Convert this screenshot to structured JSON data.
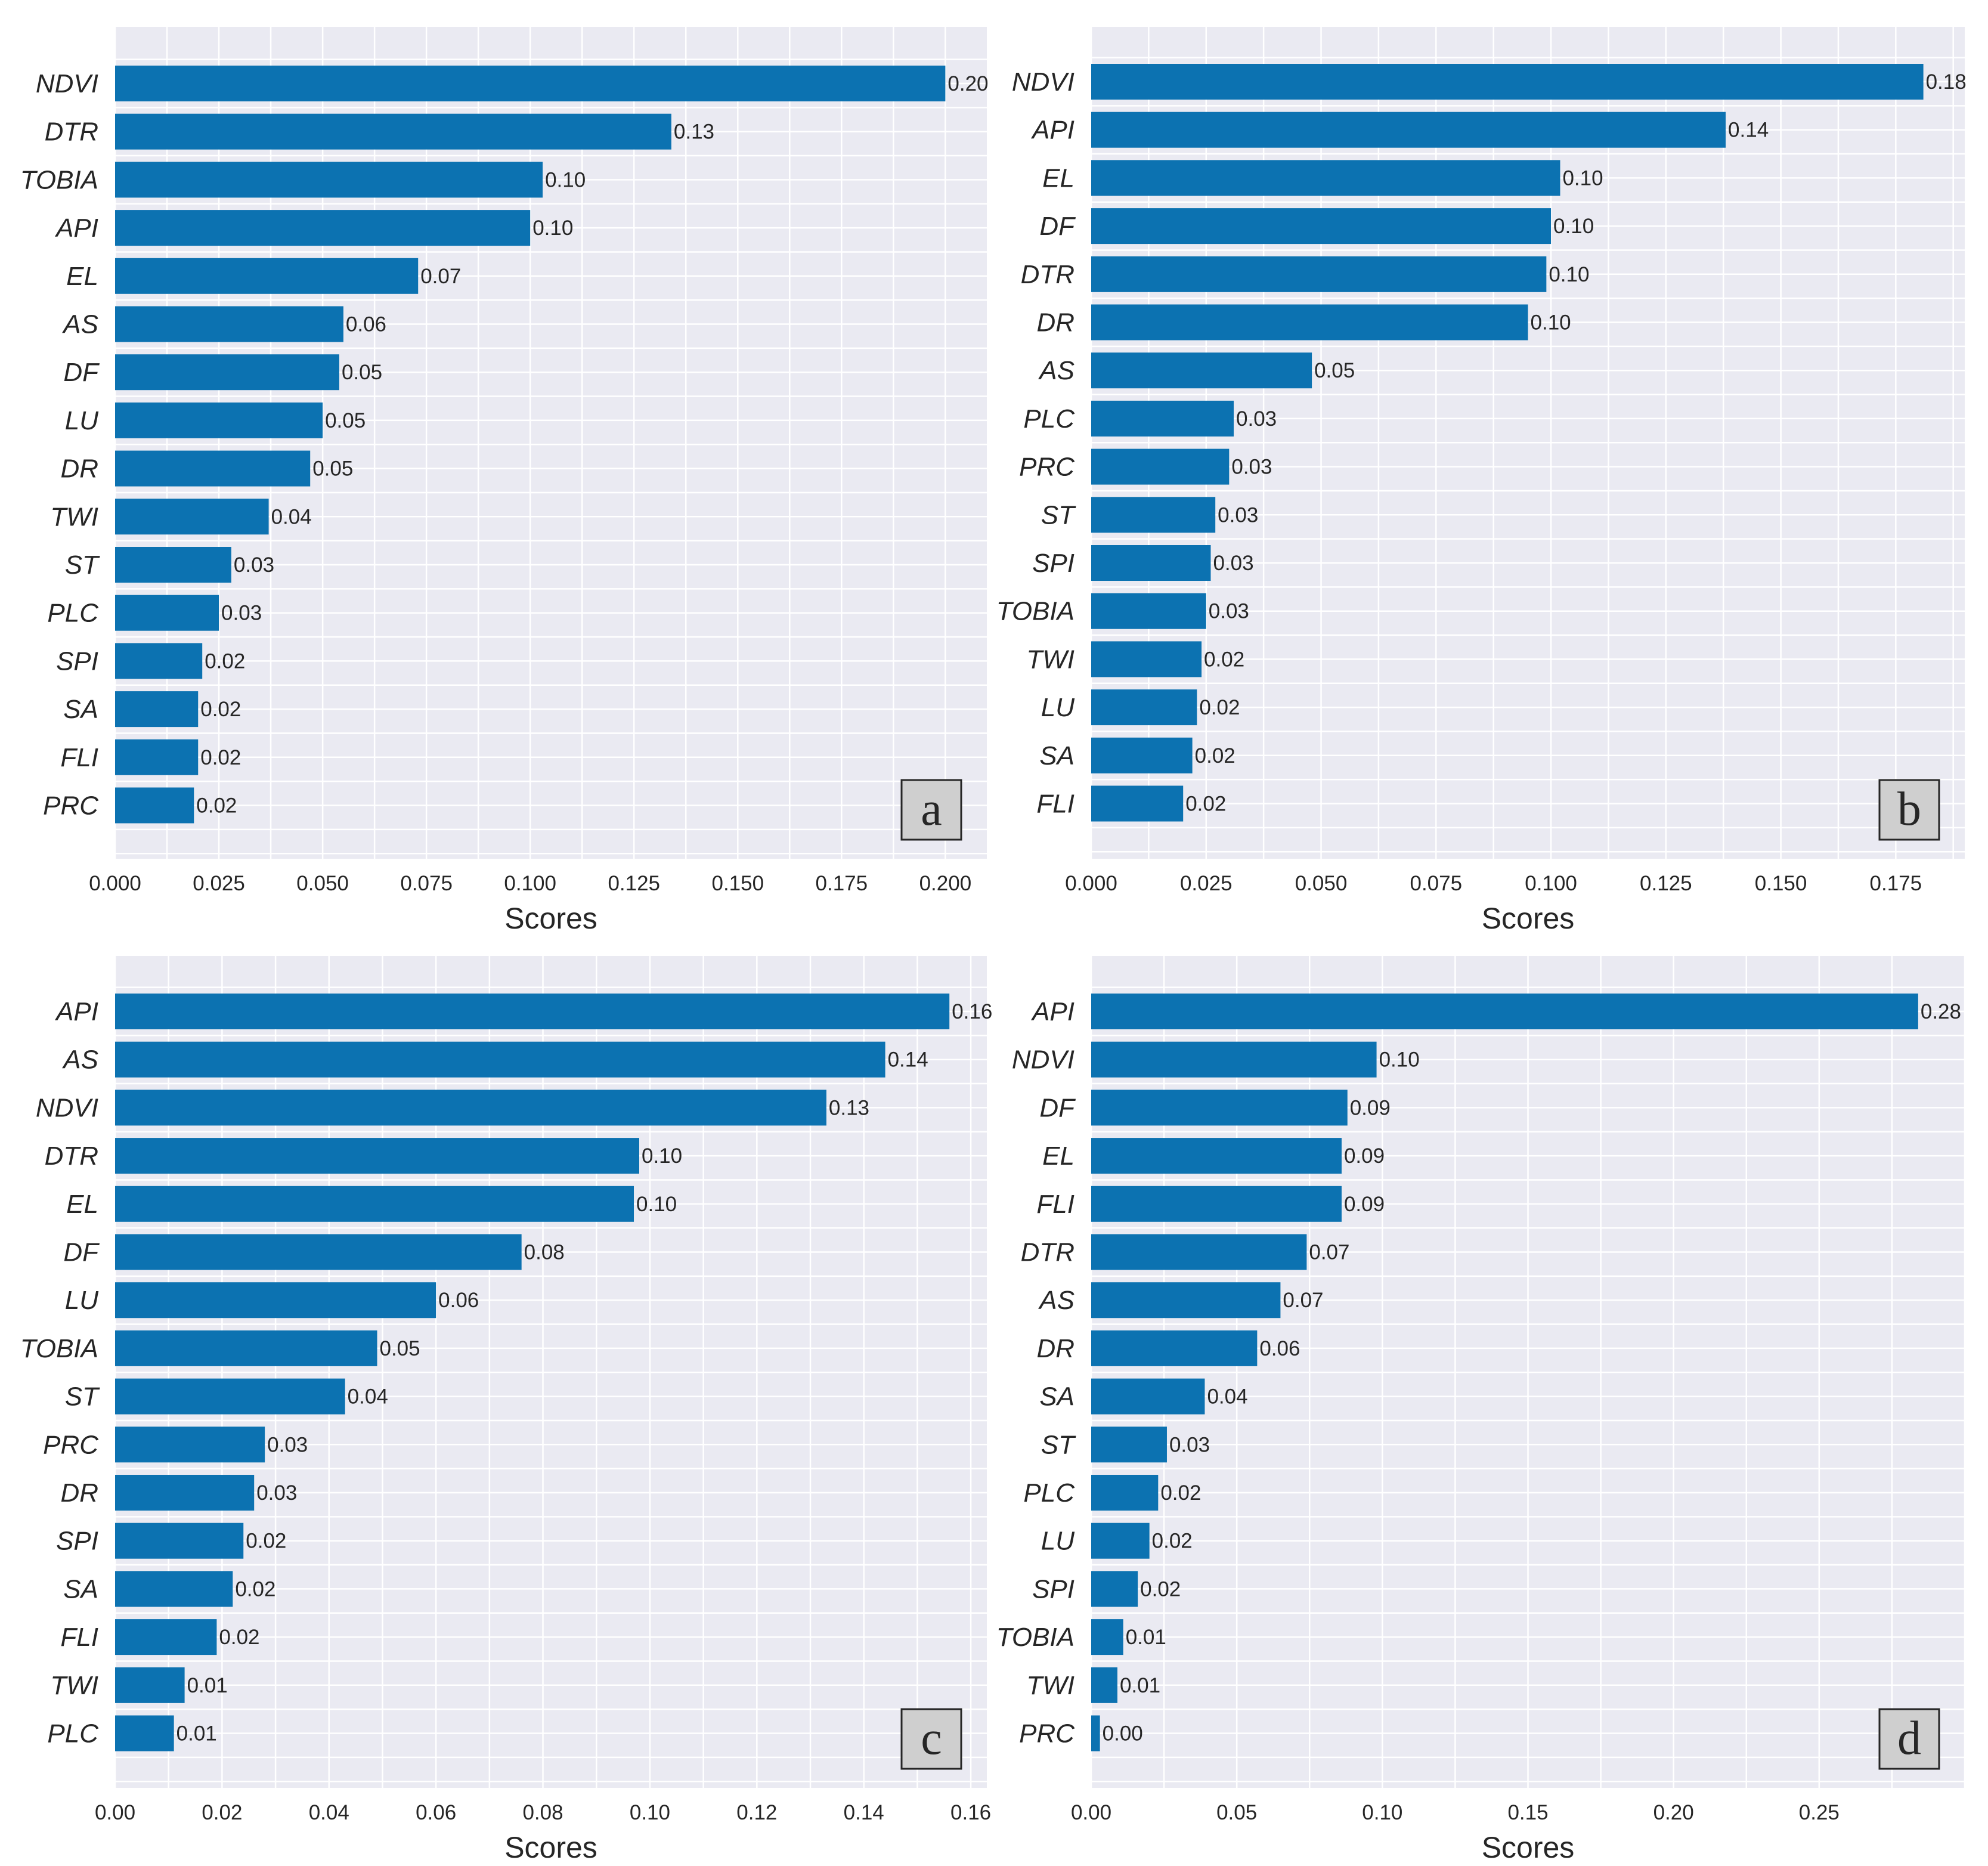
{
  "chart_data": [
    {
      "type": "bar",
      "orientation": "horizontal",
      "panel_label": "a",
      "xlabel": "Scores",
      "xlim": [
        0,
        0.21
      ],
      "xticks": [
        "0.000",
        "0.025",
        "0.050",
        "0.075",
        "0.100",
        "0.125",
        "0.150",
        "0.175",
        "0.200"
      ],
      "xtick_values": [
        0,
        0.025,
        0.05,
        0.075,
        0.1,
        0.125,
        0.15,
        0.175,
        0.2
      ],
      "categories": [
        "NDVI",
        "DTR",
        "TOBIA",
        "API",
        "EL",
        "AS",
        "DF",
        "LU",
        "DR",
        "TWI",
        "ST",
        "PLC",
        "SPI",
        "SA",
        "FLI",
        "PRC"
      ],
      "values": [
        0.2,
        0.134,
        0.103,
        0.1,
        0.073,
        0.055,
        0.054,
        0.05,
        0.047,
        0.037,
        0.028,
        0.025,
        0.021,
        0.02,
        0.02,
        0.019
      ],
      "value_labels": [
        "0.20",
        "0.13",
        "0.10",
        "0.10",
        "0.07",
        "0.06",
        "0.05",
        "0.05",
        "0.05",
        "0.04",
        "0.03",
        "0.03",
        "0.02",
        "0.02",
        "0.02",
        "0.02"
      ],
      "grid": true
    },
    {
      "type": "bar",
      "orientation": "horizontal",
      "panel_label": "b",
      "xlabel": "Scores",
      "xlim": [
        0,
        0.19
      ],
      "xticks": [
        "0.000",
        "0.025",
        "0.050",
        "0.075",
        "0.100",
        "0.125",
        "0.150",
        "0.175"
      ],
      "xtick_values": [
        0,
        0.025,
        0.05,
        0.075,
        0.1,
        0.125,
        0.15,
        0.175
      ],
      "categories": [
        "NDVI",
        "API",
        "EL",
        "DF",
        "DTR",
        "DR",
        "AS",
        "PLC",
        "PRC",
        "ST",
        "SPI",
        "TOBIA",
        "TWI",
        "LU",
        "SA",
        "FLI"
      ],
      "values": [
        0.181,
        0.138,
        0.102,
        0.1,
        0.099,
        0.095,
        0.048,
        0.031,
        0.03,
        0.027,
        0.026,
        0.025,
        0.024,
        0.023,
        0.022,
        0.02
      ],
      "value_labels": [
        "0.18",
        "0.14",
        "0.10",
        "0.10",
        "0.10",
        "0.10",
        "0.05",
        "0.03",
        "0.03",
        "0.03",
        "0.03",
        "0.03",
        "0.02",
        "0.02",
        "0.02",
        "0.02"
      ],
      "grid": true
    },
    {
      "type": "bar",
      "orientation": "horizontal",
      "panel_label": "c",
      "xlabel": "Scores",
      "xlim": [
        0,
        0.163
      ],
      "xticks": [
        "0.00",
        "0.02",
        "0.04",
        "0.06",
        "0.08",
        "0.10",
        "0.12",
        "0.14",
        "0.16"
      ],
      "xtick_values": [
        0,
        0.02,
        0.04,
        0.06,
        0.08,
        0.1,
        0.12,
        0.14,
        0.16
      ],
      "categories": [
        "API",
        "AS",
        "NDVI",
        "DTR",
        "EL",
        "DF",
        "LU",
        "TOBIA",
        "ST",
        "PRC",
        "DR",
        "SPI",
        "SA",
        "FLI",
        "TWI",
        "PLC"
      ],
      "values": [
        0.156,
        0.144,
        0.133,
        0.098,
        0.097,
        0.076,
        0.06,
        0.049,
        0.043,
        0.028,
        0.026,
        0.024,
        0.022,
        0.019,
        0.013,
        0.011
      ],
      "value_labels": [
        "0.16",
        "0.14",
        "0.13",
        "0.10",
        "0.10",
        "0.08",
        "0.06",
        "0.05",
        "0.04",
        "0.03",
        "0.03",
        "0.02",
        "0.02",
        "0.02",
        "0.01",
        "0.01"
      ],
      "grid": true
    },
    {
      "type": "bar",
      "orientation": "horizontal",
      "panel_label": "d",
      "xlabel": "Scores",
      "xlim": [
        0,
        0.3
      ],
      "xticks": [
        "0.00",
        "0.05",
        "0.10",
        "0.15",
        "0.20",
        "0.25"
      ],
      "xtick_values": [
        0,
        0.05,
        0.1,
        0.15,
        0.2,
        0.25
      ],
      "categories": [
        "API",
        "NDVI",
        "DF",
        "EL",
        "FLI",
        "DTR",
        "AS",
        "DR",
        "SA",
        "ST",
        "PLC",
        "LU",
        "SPI",
        "TOBIA",
        "TWI",
        "PRC"
      ],
      "values": [
        0.284,
        0.098,
        0.088,
        0.086,
        0.086,
        0.074,
        0.065,
        0.057,
        0.039,
        0.026,
        0.023,
        0.02,
        0.016,
        0.011,
        0.009,
        0.003
      ],
      "value_labels": [
        "0.28",
        "0.10",
        "0.09",
        "0.09",
        "0.09",
        "0.07",
        "0.07",
        "0.06",
        "0.04",
        "0.03",
        "0.02",
        "0.02",
        "0.02",
        "0.01",
        "0.01",
        "0.00"
      ],
      "grid": true
    }
  ]
}
